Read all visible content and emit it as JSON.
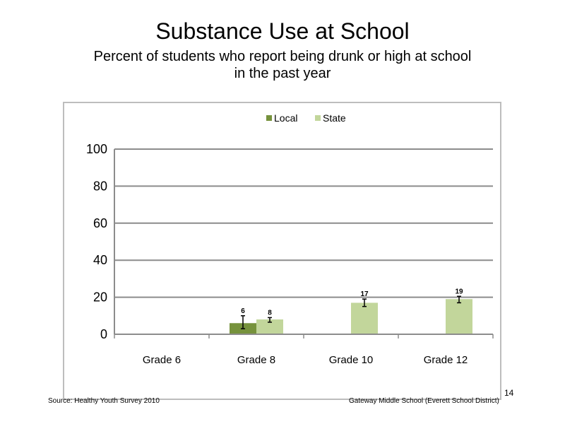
{
  "slide": {
    "title": "Substance Use at School",
    "subtitle_line1": "Percent of students who report being drunk or high at school",
    "subtitle_line2": "in the past year",
    "source": "Source: Healthy Youth Survey 2010",
    "school": "Gateway Middle School (Everett School District)",
    "page_number": "14"
  },
  "chart_data": {
    "type": "bar",
    "categories": [
      "Grade 6",
      "Grade 8",
      "Grade 10",
      "Grade 12"
    ],
    "series": [
      {
        "name": "Local",
        "values": [
          null,
          6,
          null,
          null
        ],
        "error": [
          null,
          [
            3,
            10
          ],
          null,
          null
        ],
        "color": "#76923c"
      },
      {
        "name": "State",
        "values": [
          null,
          8,
          17,
          19
        ],
        "error": [
          null,
          [
            6.5,
            9
          ],
          [
            15,
            19
          ],
          [
            17,
            20.5
          ]
        ],
        "color": "#c2d69b"
      }
    ],
    "data_labels": [
      [
        "",
        "6",
        "",
        ""
      ],
      [
        "",
        "8",
        "17",
        "19"
      ]
    ],
    "ylim": [
      0,
      100
    ],
    "yticks": [
      0,
      20,
      40,
      60,
      80,
      100
    ],
    "grid": true,
    "legend_position": "top-center",
    "xlabel": "",
    "ylabel": ""
  }
}
